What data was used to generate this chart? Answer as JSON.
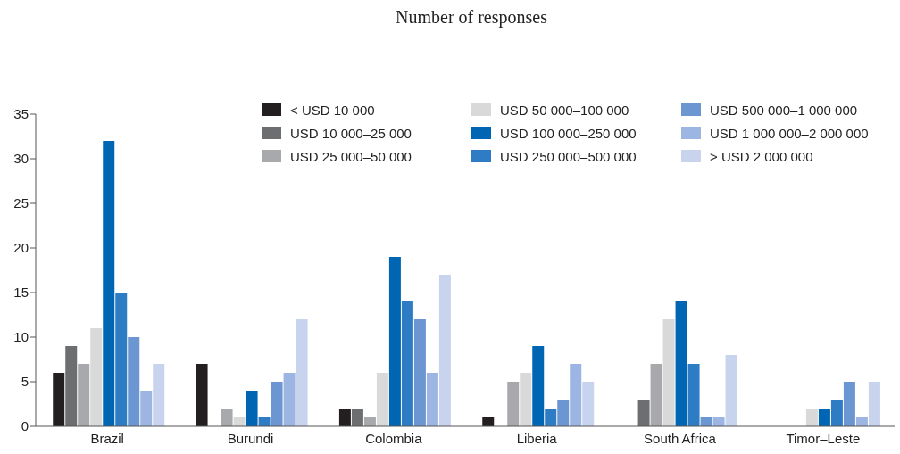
{
  "chart_data": {
    "type": "bar",
    "title": "Number of responses",
    "categories": [
      "Brazil",
      "Burundi",
      "Colombia",
      "Liberia",
      "South Africa",
      "Timor–Leste"
    ],
    "series": [
      {
        "name": "< USD 10 000",
        "color": "#231f20",
        "values": [
          6,
          7,
          2,
          1,
          0,
          0
        ]
      },
      {
        "name": "USD 10 000–25 000",
        "color": "#6d6e70",
        "values": [
          9,
          0,
          2,
          0,
          3,
          0
        ]
      },
      {
        "name": "USD 25 000–50 000",
        "color": "#a7a9ac",
        "values": [
          7,
          2,
          1,
          5,
          7,
          0
        ]
      },
      {
        "name": "USD 50 000–100 000",
        "color": "#d9d9d9",
        "values": [
          11,
          1,
          6,
          6,
          12,
          2
        ]
      },
      {
        "name": "USD 100 000–250 000",
        "color": "#0066b3",
        "values": [
          32,
          4,
          19,
          9,
          14,
          2
        ]
      },
      {
        "name": "USD 250 000–500 000",
        "color": "#2e7dc4",
        "values": [
          15,
          1,
          14,
          2,
          7,
          3
        ]
      },
      {
        "name": "USD 500 000–1 000 000",
        "color": "#6b96d2",
        "values": [
          10,
          5,
          12,
          3,
          1,
          5
        ]
      },
      {
        "name": "USD 1 000 000–2 000 000",
        "color": "#9db5e2",
        "values": [
          4,
          6,
          6,
          7,
          1,
          1
        ]
      },
      {
        "name": "> USD 2 000 000",
        "color": "#c8d3ee",
        "values": [
          7,
          12,
          17,
          5,
          8,
          5
        ]
      }
    ],
    "ylim": [
      0,
      35
    ],
    "yticks": [
      0,
      5,
      10,
      15,
      20,
      25,
      30,
      35
    ],
    "grid": false,
    "legend": "top right"
  }
}
